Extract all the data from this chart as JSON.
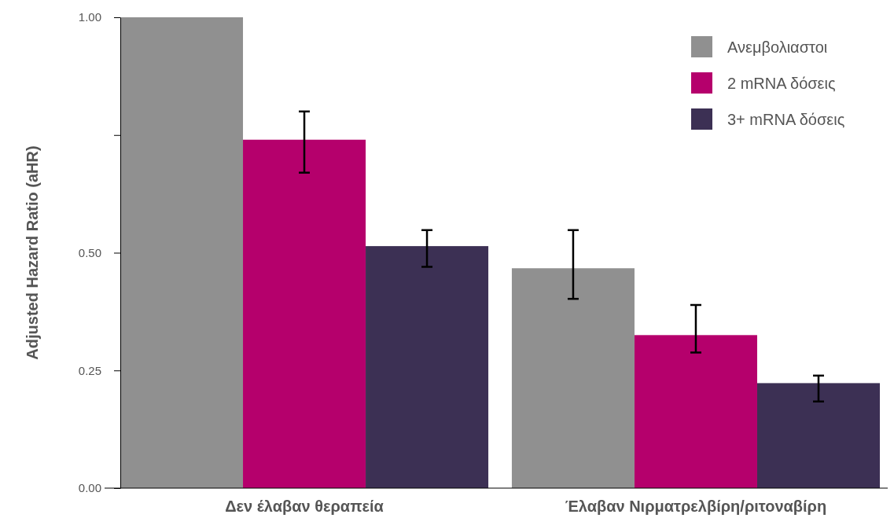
{
  "chart_data": {
    "type": "bar",
    "ylabel": "Adjusted Hazard Ratio (aHR)",
    "categories": [
      "Δεν έλαβαν θεραπεία",
      "Έλαβαν Νιρματρελβίρη/ριτοναβίρη"
    ],
    "series": [
      {
        "name": "Ανεμβολιαστοι",
        "color": "#909090",
        "values": [
          1.0,
          0.467
        ],
        "errors": [
          null,
          [
            0.402,
            0.548
          ]
        ]
      },
      {
        "name": "2 mRNA δόσεις",
        "color": "#b5006c",
        "values": [
          0.74,
          0.325
        ],
        "errors": [
          [
            0.67,
            0.8
          ],
          [
            0.288,
            0.389
          ]
        ]
      },
      {
        "name": "3+ mRNA δόσεις",
        "color": "#3c3054",
        "values": [
          0.514,
          0.223
        ],
        "errors": [
          [
            0.47,
            0.548
          ],
          [
            0.184,
            0.239
          ]
        ]
      }
    ],
    "ylim": [
      0,
      1
    ],
    "yticks": [
      {
        "value": 0,
        "label": "0.00"
      },
      0.25,
      {
        "value": 0.5,
        "label": "0.50"
      },
      {
        "value": 0.75,
        "label": null
      },
      {
        "value": 1,
        "label": "1.00"
      }
    ],
    "grid": false,
    "legend": "top right"
  }
}
